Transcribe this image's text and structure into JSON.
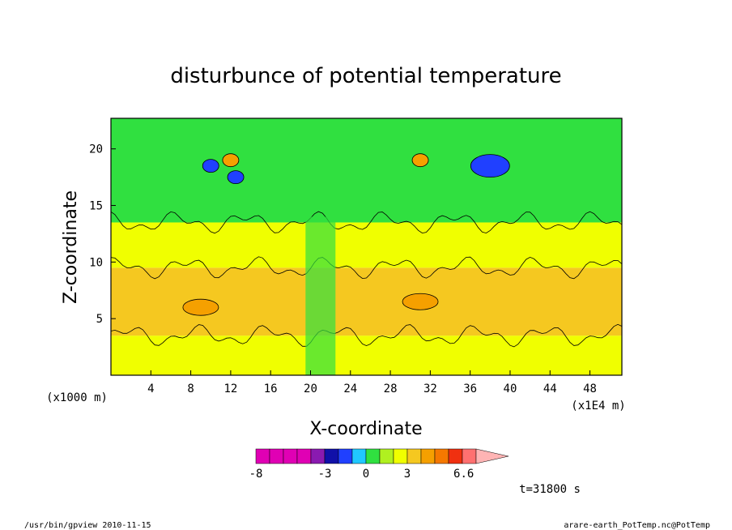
{
  "chart_data": {
    "type": "heatmap",
    "title": "disturbunce of potential temperature",
    "xlabel": "X-coordinate",
    "ylabel": "Z-coordinate",
    "x_unit_left": "(x1000 m)",
    "x_unit_right": "(x1E4 m)",
    "xlim": [
      0,
      51.2
    ],
    "ylim": [
      0,
      22.7
    ],
    "x_ticks": [
      "4",
      "8",
      "12",
      "16",
      "20",
      "24",
      "28",
      "32",
      "36",
      "40",
      "44",
      "48"
    ],
    "y_ticks": [
      "5",
      "10",
      "15",
      "20"
    ],
    "colorbar": {
      "ticks": [
        "-8",
        "-3",
        "0",
        "3",
        "6.6"
      ],
      "colors": [
        "#e000b4",
        "#e000b4",
        "#e000b4",
        "#e000b4",
        "#8a1ab0",
        "#1010a8",
        "#2040ff",
        "#20c8ff",
        "#30e040",
        "#b0f020",
        "#f0ff00",
        "#f5c820",
        "#f5a000",
        "#f57800",
        "#f03010",
        "#ff7070"
      ],
      "extend_color": "#ffb4b4"
    },
    "time_label": "t=31800 s",
    "footer_left": "/usr/bin/gpview  2010-11-15",
    "footer_right": "arare-earth_PotTemp.nc@PotTemp",
    "bands": [
      {
        "name": "lower-layer",
        "z": [
          0,
          3.5
        ],
        "level": "0",
        "color": "#f0ff00"
      },
      {
        "name": "warm-layer",
        "z": [
          3.5,
          9.5
        ],
        "level": "1 to 3",
        "color": "#f5c820"
      },
      {
        "name": "mid-layer",
        "z": [
          9.5,
          13.5
        ],
        "level": "0",
        "color": "#f0ff00"
      },
      {
        "name": "upper-layer",
        "z": [
          13.5,
          22.7
        ],
        "level": "-1 to 0",
        "color": "#30e040"
      }
    ],
    "features": [
      {
        "name": "cold-cell-1",
        "x": 10,
        "z": 18.5,
        "value": -3,
        "color": "#2040ff"
      },
      {
        "name": "cold-cell-2",
        "x": 12.5,
        "z": 17.5,
        "value": -3,
        "color": "#2040ff"
      },
      {
        "name": "warm-cell-1",
        "x": 12,
        "z": 19,
        "value": 3,
        "color": "#f5a000"
      },
      {
        "name": "cold-cell-3",
        "x": 38,
        "z": 18.5,
        "value": -3,
        "color": "#2040ff"
      },
      {
        "name": "warm-cell-2",
        "x": 31,
        "z": 19,
        "value": 2,
        "color": "#f5a000"
      },
      {
        "name": "warm-patch-1",
        "x": 9,
        "z": 6,
        "value": 2,
        "color": "#f5a000"
      },
      {
        "name": "warm-patch-2",
        "x": 31,
        "z": 6.5,
        "value": 2,
        "color": "#f5a000"
      }
    ]
  }
}
